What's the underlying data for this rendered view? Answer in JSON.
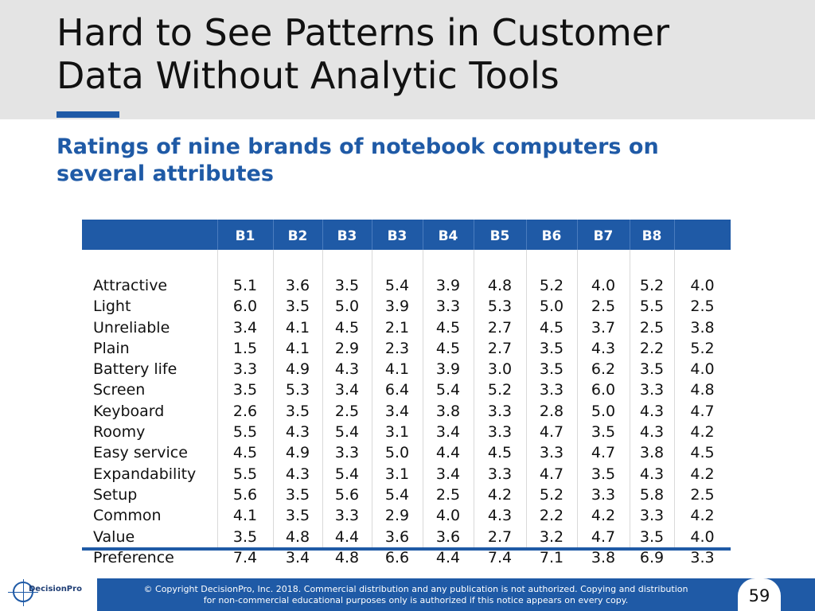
{
  "slide": {
    "title_line1": "Hard to See Patterns in Customer",
    "title_line2": "Data Without Analytic Tools",
    "subtitle_line1": "Ratings of nine brands of notebook computers on",
    "subtitle_line2": "several attributes",
    "page_number": "59"
  },
  "table": {
    "headers": [
      "",
      "B1",
      "B2",
      "B3",
      "B3",
      "B4",
      "B5",
      "B6",
      "B7",
      "B8",
      ""
    ],
    "rows": [
      {
        "label": "Attractive",
        "values": [
          "5.1",
          "3.6",
          "3.5",
          "5.4",
          "3.9",
          "4.8",
          "5.2",
          "4.0",
          "5.2",
          "4.0"
        ]
      },
      {
        "label": "Light",
        "values": [
          "6.0",
          "3.5",
          "5.0",
          "3.9",
          "3.3",
          "5.3",
          "5.0",
          "2.5",
          "5.5",
          "2.5"
        ]
      },
      {
        "label": "Unreliable",
        "values": [
          "3.4",
          "4.1",
          "4.5",
          "2.1",
          "4.5",
          "2.7",
          "4.5",
          "3.7",
          "2.5",
          "3.8"
        ]
      },
      {
        "label": "Plain",
        "values": [
          "1.5",
          "4.1",
          "2.9",
          "2.3",
          "4.5",
          "2.7",
          "3.5",
          "4.3",
          "2.2",
          "5.2"
        ]
      },
      {
        "label": "Battery life",
        "values": [
          "3.3",
          "4.9",
          "4.3",
          "4.1",
          "3.9",
          "3.0",
          "3.5",
          "6.2",
          "3.5",
          "4.0"
        ]
      },
      {
        "label": "Screen",
        "values": [
          "3.5",
          "5.3",
          "3.4",
          "6.4",
          "5.4",
          "5.2",
          "3.3",
          "6.0",
          "3.3",
          "4.8"
        ]
      },
      {
        "label": "Keyboard",
        "values": [
          "2.6",
          "3.5",
          "2.5",
          "3.4",
          "3.8",
          "3.3",
          "2.8",
          "5.0",
          "4.3",
          "4.7"
        ]
      },
      {
        "label": "Roomy",
        "values": [
          "5.5",
          "4.3",
          "5.4",
          "3.1",
          "3.4",
          "3.3",
          "4.7",
          "3.5",
          "4.3",
          "4.2"
        ]
      },
      {
        "label": "Easy service",
        "values": [
          "4.5",
          "4.9",
          "3.3",
          "5.0",
          "4.4",
          "4.5",
          "3.3",
          "4.7",
          "3.8",
          "4.5"
        ]
      },
      {
        "label": "Expandability",
        "values": [
          "5.5",
          "4.3",
          "5.4",
          "3.1",
          "3.4",
          "3.3",
          "4.7",
          "3.5",
          "4.3",
          "4.2"
        ]
      },
      {
        "label": "Setup",
        "values": [
          "5.6",
          "3.5",
          "5.6",
          "5.4",
          "2.5",
          "4.2",
          "5.2",
          "3.3",
          "5.8",
          "2.5"
        ]
      },
      {
        "label": "Common",
        "values": [
          "4.1",
          "3.5",
          "3.3",
          "2.9",
          "4.0",
          "4.3",
          "2.2",
          "4.2",
          "3.3",
          "4.2"
        ]
      },
      {
        "label": "Value",
        "values": [
          "3.5",
          "4.8",
          "4.4",
          "3.6",
          "3.6",
          "2.7",
          "3.2",
          "4.7",
          "3.5",
          "4.0"
        ]
      },
      {
        "label": "Preference",
        "values": [
          "7.4",
          "3.4",
          "4.8",
          "6.6",
          "4.4",
          "7.4",
          "7.1",
          "3.8",
          "6.9",
          "3.3"
        ]
      }
    ]
  },
  "footer": {
    "logo_text": "DecisionPro",
    "copyright_line1": "© Copyright DecisionPro, Inc.  2018. Commercial distribution and any publication is not authorized. Copying and distribution",
    "copyright_line2": "for non-commercial educational purposes only is authorized if this notice appears on every copy."
  },
  "colors": {
    "accent": "#1f5aa6",
    "title_band": "#e4e4e4"
  }
}
